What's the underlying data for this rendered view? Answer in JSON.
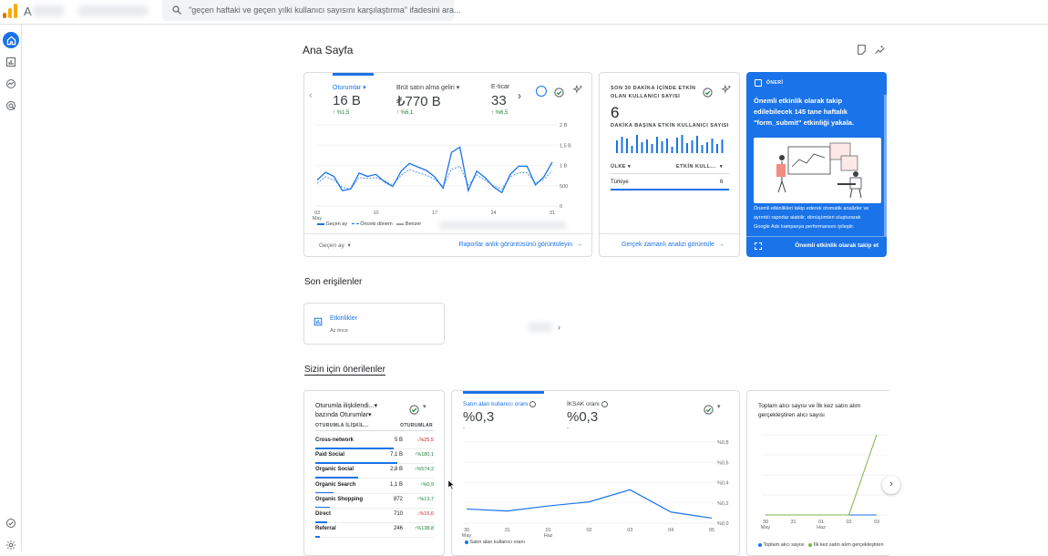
{
  "topbar": {
    "brand_letter": "A",
    "search_placeholder": "\"geçen haftaki ve geçen yılki kullanıcı sayısını karşılaştırma\" ifadesini ara..."
  },
  "page": {
    "title": "Ana Sayfa"
  },
  "overview_card": {
    "tabs": [
      {
        "label": "Oturumlar",
        "value": "16 B",
        "change": "%1,5"
      },
      {
        "label": "Brüt satın alma geliri",
        "value": "₺770 B",
        "change": "%6,1"
      },
      {
        "label": "E-ticar",
        "value": "33",
        "change": "%6,5"
      }
    ],
    "y_ticks": [
      "2 B",
      "1,5 B",
      "1 B",
      "500",
      "0"
    ],
    "x_ticks": [
      "03",
      "10",
      "17",
      "24",
      "31"
    ],
    "x_sub": "May",
    "legend": [
      "Geçen ay",
      "Önceki dönem",
      "Benzer"
    ],
    "date_range": "Geçen ay",
    "footer_link": "Raporlar anlık görüntüsünü görüntüleyin"
  },
  "realtime_card": {
    "title": "SON 30 DAKİKA İÇİNDE ETKİN OLAN KULLANICI SAYISI",
    "value": "6",
    "subtitle": "DAKİKA BAŞINA ETKİN KULLANICI SAYISI",
    "col_country": "ÜLKE",
    "col_users": "ETKİN KULL...",
    "rows": [
      {
        "country": "Türkiye",
        "users": "6"
      }
    ],
    "footer_link": "Gerçek zamanlı analizi görüntüle"
  },
  "suggestion_card": {
    "tag": "ÖNERİ",
    "headline": "Önemli etkinlik olarak takip edilebilecek 145 tane haftalık \"form_submit\" etkinliği yakala.",
    "body": "Önemli etkinlikleri takip ederek otomatik analizler ve ayrıntılı raporlar alabilir, dönüşümleri oluşturarak Google Ads kampanya performansını iyileştir.",
    "action": "Önemli etkinlik olarak takip et"
  },
  "recent": {
    "title": "Son erişilenler",
    "item_label": "Etkinlikler",
    "item_time": "Az önce"
  },
  "recommended": {
    "title": "Sizin için önerilenler",
    "sessions_card": {
      "title_line1": "Oturumla ilişkilendi...",
      "title_line2": "bazında Oturumlar",
      "col_left": "OTURUMLA İLİŞKİL...",
      "col_right": "OTURUMLAR",
      "rows": [
        {
          "name": "Cross-network",
          "value": "5 B",
          "change": "%25,5",
          "dir": "down",
          "bar": 95
        },
        {
          "name": "Paid Social",
          "value": "7,1 B",
          "change": "%180,1",
          "dir": "up",
          "bar": 100
        },
        {
          "name": "Organic Social",
          "value": "2,8 B",
          "change": "%574,2",
          "dir": "up",
          "bar": 52
        },
        {
          "name": "Organic Search",
          "value": "1,1 B",
          "change": "%0,9",
          "dir": "up",
          "bar": 22
        },
        {
          "name": "Organic Shopping",
          "value": "872",
          "change": "%13,7",
          "dir": "up",
          "bar": 18
        },
        {
          "name": "Direct",
          "value": "710",
          "change": "%15,6",
          "dir": "down",
          "bar": 14
        },
        {
          "name": "Referral",
          "value": "246",
          "change": "%138,8",
          "dir": "up",
          "bar": 5
        }
      ]
    },
    "rate_card": {
      "tab1_label": "Satın alan kullanıcı oranı",
      "tab1_value": "%0,3",
      "tab1_sub": "-",
      "tab2_label": "İKSAK oranı",
      "tab2_value": "%0,3",
      "tab2_sub": "-",
      "y_ticks": [
        "%0,8",
        "%0,6",
        "%0,4",
        "%0,2",
        "%0,0"
      ],
      "x_ticks": [
        "30",
        "31",
        "01",
        "02",
        "03",
        "04",
        "05"
      ],
      "x_sub": [
        "May",
        "",
        "Haz",
        "",
        "",
        "",
        ""
      ],
      "legend": "Satın alan kullanıcı oranı"
    },
    "buyers_card": {
      "title": "Toplam alıcı sayısı ve İlk kez satın alım gerçekleştiren alıcı sayısı",
      "x_ticks": [
        "30",
        "31",
        "01",
        "02",
        "03"
      ],
      "x_sub": [
        "May",
        "",
        "Haz",
        "",
        ""
      ],
      "legend1": "Toplam alıcı sayısı",
      "legend2": "İlk kez satın alım gerçekleştiren"
    }
  },
  "colors": {
    "accent": "#1a73e8",
    "green": "#188038",
    "red": "#c5221f",
    "olive": "#7cb342"
  },
  "chart_data": [
    {
      "type": "line",
      "title": "",
      "ylim": [
        0,
        2000
      ],
      "x": [
        "03 May",
        "04",
        "05",
        "06",
        "07",
        "08",
        "09",
        "10",
        "11",
        "12",
        "13",
        "14",
        "15",
        "16",
        "17",
        "18",
        "19",
        "20",
        "21",
        "22",
        "23",
        "24",
        "25",
        "26",
        "27",
        "28",
        "29",
        "30",
        "31"
      ],
      "series": [
        {
          "name": "Geçen ay",
          "values": [
            640,
            830,
            730,
            380,
            420,
            810,
            730,
            780,
            600,
            480,
            860,
            1050,
            960,
            880,
            720,
            440,
            1320,
            1450,
            380,
            860,
            700,
            470,
            330,
            780,
            980,
            980,
            520,
            720,
            1080
          ]
        },
        {
          "name": "Önceki dönem",
          "values": [
            560,
            720,
            640,
            460,
            420,
            700,
            680,
            700,
            620,
            520,
            760,
            900,
            820,
            760,
            660,
            480,
            900,
            980,
            520,
            760,
            640,
            500,
            420,
            720,
            820,
            820,
            560,
            660,
            860
          ]
        }
      ]
    },
    {
      "type": "line",
      "title": "",
      "categories": [
        "30 May",
        "31",
        "01 Haz",
        "02",
        "03",
        "04",
        "05"
      ],
      "ylim": [
        0,
        0.8
      ],
      "series": [
        {
          "name": "Satın alan kullanıcı oranı",
          "values": [
            0.14,
            0.12,
            0.17,
            0.21,
            0.33,
            0.11,
            0.05
          ]
        }
      ]
    },
    {
      "type": "line",
      "title": "",
      "categories": [
        "30 May",
        "31",
        "01 Haz",
        "02",
        "03"
      ],
      "series": [
        {
          "name": "Toplam alıcı sayısı",
          "values": [
            0,
            0,
            0,
            0,
            0
          ]
        },
        {
          "name": "İlk kez satın alım gerçekleştiren",
          "values": [
            0,
            0,
            0,
            0,
            1
          ]
        }
      ]
    }
  ]
}
